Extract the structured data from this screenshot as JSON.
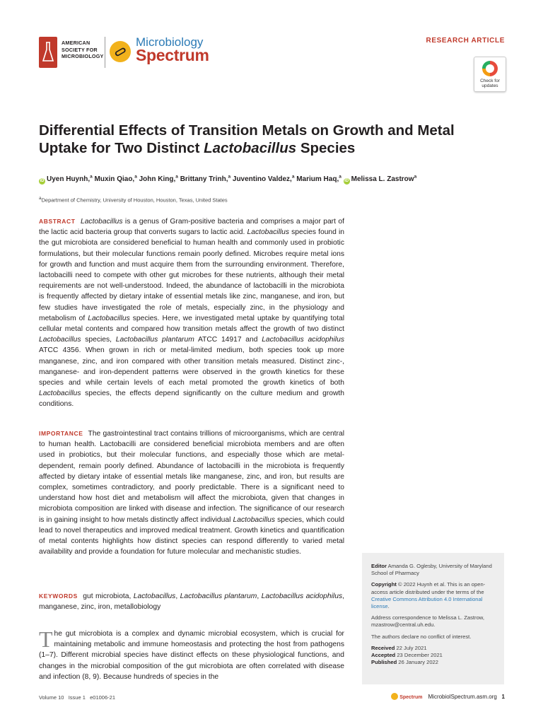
{
  "header": {
    "society_line1": "AMERICAN",
    "society_line2": "SOCIETY FOR",
    "society_line3": "MICROBIOLOGY",
    "journal_name_top": "Microbiology",
    "journal_name_bottom": "Spectrum",
    "article_type": "RESEARCH ARTICLE",
    "check_updates_line1": "Check for",
    "check_updates_line2": "updates"
  },
  "title": {
    "part1": "Differential Effects of Transition Metals on Growth and Metal Uptake for Two Distinct ",
    "italic": "Lactobacillus",
    "part2": " Species"
  },
  "authors": [
    {
      "name": "Uyen Huynh,",
      "sup": "a",
      "orcid": true
    },
    {
      "name": "Muxin Qiao,",
      "sup": "a",
      "orcid": false
    },
    {
      "name": "John King,",
      "sup": "a",
      "orcid": false
    },
    {
      "name": "Brittany Trinh,",
      "sup": "a",
      "orcid": false
    },
    {
      "name": "Juventino Valdez,",
      "sup": "a",
      "orcid": false
    },
    {
      "name": "Marium Haq,",
      "sup": "a",
      "orcid": false
    },
    {
      "name": "Melissa L. Zastrow",
      "sup": "a",
      "orcid": true
    }
  ],
  "affiliation": "aDepartment of Chemistry, University of Houston, Houston, Texas, United States",
  "abstract": {
    "label": "ABSTRACT",
    "html": "<i>Lactobacillus</i> is a genus of Gram-positive bacteria and comprises a major part of the lactic acid bacteria group that converts sugars to lactic acid. <i>Lactobacillus</i> species found in the gut microbiota are considered beneficial to human health and commonly used in probiotic formulations, but their molecular functions remain poorly defined. Microbes require metal ions for growth and function and must acquire them from the surrounding environment. Therefore, lactobacilli need to compete with other gut microbes for these nutrients, although their metal requirements are not well-understood. Indeed, the abundance of lactobacilli in the microbiota is frequently affected by dietary intake of essential metals like zinc, manganese, and iron, but few studies have investigated the role of metals, especially zinc, in the physiology and metabolism of <i>Lactobacillus</i> species. Here, we investigated metal uptake by quantifying total cellular metal contents and compared how transition metals affect the growth of two distinct <i>Lactobacillus</i> species, <i>Lactobacillus plantarum</i> ATCC 14917 and <i>Lactobacillus acidophilus</i> ATCC 4356. When grown in rich or metal-limited medium, both species took up more manganese, zinc, and iron compared with other transition metals measured. Distinct zinc-, manganese- and iron-dependent patterns were observed in the growth kinetics for these species and while certain levels of each metal promoted the growth kinetics of both <i>Lactobacillus</i> species, the effects depend significantly on the culture medium and growth conditions."
  },
  "importance": {
    "label": "IMPORTANCE",
    "html": "The gastrointestinal tract contains trillions of microorganisms, which are central to human health. Lactobacilli are considered beneficial microbiota members and are often used in probiotics, but their molecular functions, and especially those which are metal-dependent, remain poorly defined. Abundance of lactobacilli in the microbiota is frequently affected by dietary intake of essential metals like manganese, zinc, and iron, but results are complex, sometimes contradictory, and poorly predictable. There is a significant need to understand how host diet and metabolism will affect the microbiota, given that changes in microbiota composition are linked with disease and infection. The significance of our research is in gaining insight to how metals distinctly affect individual <i>Lactobacillus</i> species, which could lead to novel therapeutics and improved medical treatment. Growth kinetics and quantification of metal contents highlights how distinct species can respond differently to varied metal availability and provide a foundation for future molecular and mechanistic studies."
  },
  "keywords": {
    "label": "KEYWORDS",
    "html": "gut microbiota, <i>Lactobacillus</i>, <i>Lactobacillus plantarum</i>, <i>Lactobacillus acidophilus</i>, manganese, zinc, iron, metallobiology"
  },
  "intro": {
    "dropcap": "T",
    "text": "he gut microbiota is a complex and dynamic microbial ecosystem, which is crucial for maintaining metabolic and immune homeostasis and protecting the host from pathogens (1–7). Different microbial species have distinct effects on these physiological functions, and changes in the microbial composition of the gut microbiota are often correlated with disease and infection (8, 9). Because hundreds of species in the"
  },
  "sidebar": {
    "editor_label": "Editor",
    "editor_text": "Amanda G. Oglesby, University of Maryland School of Pharmacy",
    "copyright_label": "Copyright",
    "copyright_text": "© 2022 Huynh et al. This is an open-access article distributed under the terms of the ",
    "license_link": "Creative Commons Attribution 4.0 International license",
    "license_end": ".",
    "correspondence": "Address correspondence to Melissa L. Zastrow, mzastrow@central.uh.edu.",
    "conflict": "The authors declare no conflict of interest.",
    "received_label": "Received",
    "received_date": "22 July 2021",
    "accepted_label": "Accepted",
    "accepted_date": "23 December 2021",
    "published_label": "Published",
    "published_date": "26 January 2022"
  },
  "footer": {
    "volume": "Volume 10   Issue 1   e01006-21",
    "mini_journal": "Spectrum",
    "url": "MicrobiolSpectrum.asm.org",
    "page": "1"
  }
}
